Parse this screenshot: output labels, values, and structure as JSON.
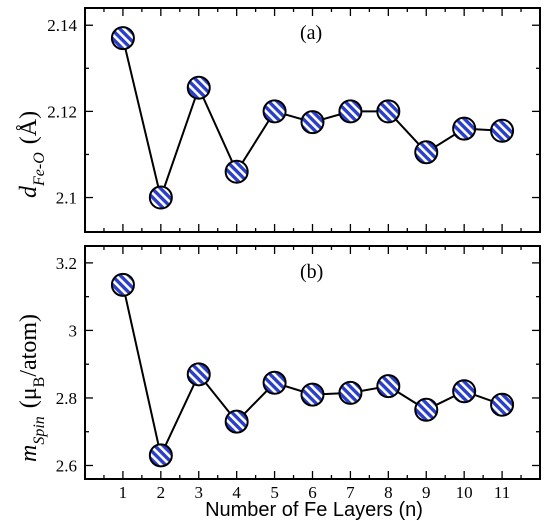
{
  "colors": {
    "marker_fill": "#2a3fc9",
    "marker_stripe": "#ffffff",
    "line": "#000000"
  },
  "chart_data": [
    {
      "type": "line",
      "panel_label": "(a)",
      "ylabel": {
        "symbol": "d",
        "subscript": "Fe-O",
        "unit": "(Å)"
      },
      "xlim": [
        0,
        12
      ],
      "ylim": [
        2.092,
        2.144
      ],
      "yticks": [
        "2.1",
        "2.12",
        "2.14"
      ],
      "ytick_values": [
        2.1,
        2.12,
        2.14
      ],
      "x": [
        1,
        2,
        3,
        4,
        5,
        6,
        7,
        8,
        9,
        10,
        11
      ],
      "values": [
        2.137,
        2.1,
        2.1255,
        2.106,
        2.12,
        2.1175,
        2.12,
        2.12,
        2.1105,
        2.116,
        2.1155
      ],
      "marker": "hatched-circle"
    },
    {
      "type": "line",
      "panel_label": "(b)",
      "ylabel": {
        "symbol": "m",
        "subscript": "Spin",
        "unit_pre": "(μ",
        "unit_sub": "B",
        "unit_post": "/atom)"
      },
      "xlim": [
        0,
        12
      ],
      "ylim": [
        2.56,
        3.25
      ],
      "yticks": [
        "2.6",
        "2.8",
        "3",
        "3.2"
      ],
      "ytick_values": [
        2.6,
        2.8,
        3.0,
        3.2
      ],
      "x": [
        1,
        2,
        3,
        4,
        5,
        6,
        7,
        8,
        9,
        10,
        11
      ],
      "values": [
        3.135,
        2.63,
        2.87,
        2.73,
        2.845,
        2.81,
        2.815,
        2.835,
        2.765,
        2.82,
        2.78
      ],
      "marker": "hatched-circle"
    }
  ],
  "xaxis": {
    "label": "Number of Fe Layers (n)",
    "ticks": [
      "1",
      "2",
      "3",
      "4",
      "5",
      "6",
      "7",
      "8",
      "9",
      "10",
      "11"
    ]
  }
}
